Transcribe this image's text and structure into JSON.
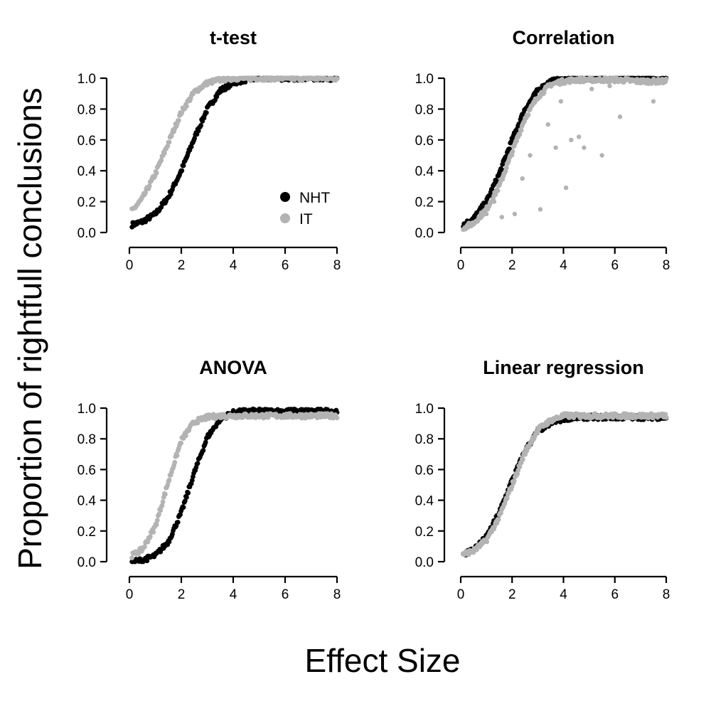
{
  "figure": {
    "xlabel": "Effect Size",
    "ylabel": "Proportion of rightfull conclusions"
  },
  "colors": {
    "NHT": "#000000",
    "IT": "#b3b3b3"
  },
  "chart_data": [
    {
      "type": "scatter",
      "title": "t-test",
      "xlim": [
        0,
        8
      ],
      "ylim": [
        0,
        1
      ],
      "x_ticks": [
        "0",
        "2",
        "4",
        "6",
        "8"
      ],
      "y_ticks": [
        "0.0",
        "0.2",
        "0.4",
        "0.6",
        "0.8",
        "1.0"
      ],
      "legend": {
        "placement": "bottom-right",
        "entries": [
          "NHT",
          "IT"
        ]
      },
      "series": [
        {
          "name": "NHT",
          "x": [
            0.1,
            0.5,
            1.0,
            1.5,
            2.0,
            2.5,
            3.0,
            3.5,
            4.0,
            4.5,
            5.0,
            6.0,
            7.0,
            8.0
          ],
          "y": [
            0.05,
            0.07,
            0.12,
            0.23,
            0.4,
            0.61,
            0.8,
            0.92,
            0.97,
            0.99,
            1.0,
            1.0,
            1.0,
            1.0
          ]
        },
        {
          "name": "IT",
          "x": [
            0.1,
            0.5,
            1.0,
            1.5,
            2.0,
            2.5,
            3.0,
            3.5,
            4.0,
            4.5,
            5.0,
            6.0,
            7.0,
            8.0
          ],
          "y": [
            0.14,
            0.22,
            0.38,
            0.58,
            0.78,
            0.91,
            0.97,
            0.99,
            1.0,
            1.0,
            1.0,
            1.0,
            1.0,
            1.0
          ]
        }
      ]
    },
    {
      "type": "scatter",
      "title": "Correlation",
      "xlim": [
        0,
        8
      ],
      "ylim": [
        0,
        1
      ],
      "x_ticks": [
        "0",
        "2",
        "4",
        "6",
        "8"
      ],
      "y_ticks": [
        "0.0",
        "0.2",
        "0.4",
        "0.6",
        "0.8",
        "1.0"
      ],
      "series": [
        {
          "name": "NHT",
          "x": [
            0.1,
            0.5,
            1.0,
            1.5,
            2.0,
            2.5,
            3.0,
            3.5,
            4.0,
            4.5,
            5.0,
            6.0,
            7.0,
            8.0
          ],
          "y": [
            0.05,
            0.09,
            0.2,
            0.38,
            0.6,
            0.8,
            0.92,
            0.98,
            0.99,
            1.0,
            1.0,
            1.0,
            1.0,
            1.0
          ]
        },
        {
          "name": "IT",
          "x": [
            0.1,
            0.5,
            1.0,
            1.5,
            2.0,
            2.5,
            3.0,
            3.5,
            4.0,
            4.5,
            5.0,
            6.0,
            7.0,
            8.0
          ],
          "y": [
            0.03,
            0.06,
            0.15,
            0.3,
            0.52,
            0.74,
            0.88,
            0.96,
            0.98,
            0.99,
            0.99,
            0.99,
            0.98,
            0.98
          ]
        },
        {
          "name": "IT",
          "x": [
            1.0,
            1.3,
            1.6,
            2.1,
            2.4,
            2.7,
            3.1,
            3.4,
            3.7,
            3.9,
            4.1,
            4.3,
            4.6,
            4.8,
            5.1,
            5.5,
            5.8,
            6.2,
            6.9,
            7.5,
            7.9
          ],
          "y": [
            0.12,
            0.2,
            0.1,
            0.12,
            0.35,
            0.5,
            0.15,
            0.7,
            0.55,
            0.85,
            0.29,
            0.6,
            0.62,
            0.55,
            0.93,
            0.5,
            0.95,
            0.75,
            0.97,
            0.85,
            0.98
          ]
        }
      ]
    },
    {
      "type": "scatter",
      "title": "ANOVA",
      "xlim": [
        0,
        8
      ],
      "ylim": [
        0,
        1
      ],
      "x_ticks": [
        "0",
        "2",
        "4",
        "6",
        "8"
      ],
      "y_ticks": [
        "0.0",
        "0.2",
        "0.4",
        "0.6",
        "0.8",
        "1.0"
      ],
      "series": [
        {
          "name": "NHT",
          "x": [
            0.1,
            0.5,
            1.0,
            1.5,
            2.0,
            2.5,
            3.0,
            3.5,
            4.0,
            4.5,
            5.0,
            6.0,
            7.0,
            8.0
          ],
          "y": [
            0.0,
            0.01,
            0.04,
            0.13,
            0.32,
            0.58,
            0.81,
            0.93,
            0.97,
            0.98,
            0.98,
            0.98,
            0.98,
            0.98
          ]
        },
        {
          "name": "IT",
          "x": [
            0.1,
            0.5,
            1.0,
            1.5,
            2.0,
            2.5,
            3.0,
            3.5,
            4.0,
            4.5,
            5.0,
            6.0,
            7.0,
            8.0
          ],
          "y": [
            0.04,
            0.08,
            0.23,
            0.52,
            0.79,
            0.91,
            0.94,
            0.95,
            0.95,
            0.95,
            0.95,
            0.95,
            0.95,
            0.95
          ]
        }
      ]
    },
    {
      "type": "scatter",
      "title": "Linear regression",
      "xlim": [
        0,
        8
      ],
      "ylim": [
        0,
        1
      ],
      "x_ticks": [
        "0",
        "2",
        "4",
        "6",
        "8"
      ],
      "y_ticks": [
        "0.0",
        "0.2",
        "0.4",
        "0.6",
        "0.8",
        "1.0"
      ],
      "series": [
        {
          "name": "NHT",
          "x": [
            0.1,
            0.5,
            1.0,
            1.5,
            2.0,
            2.5,
            3.0,
            3.5,
            4.0,
            4.5,
            5.0,
            6.0,
            7.0,
            8.0
          ],
          "y": [
            0.05,
            0.08,
            0.16,
            0.32,
            0.53,
            0.72,
            0.85,
            0.9,
            0.93,
            0.94,
            0.94,
            0.94,
            0.94,
            0.94
          ]
        },
        {
          "name": "IT",
          "x": [
            0.1,
            0.5,
            1.0,
            1.5,
            2.0,
            2.5,
            3.0,
            3.5,
            4.0,
            4.5,
            5.0,
            6.0,
            7.0,
            8.0
          ],
          "y": [
            0.05,
            0.07,
            0.14,
            0.29,
            0.5,
            0.71,
            0.86,
            0.92,
            0.95,
            0.95,
            0.95,
            0.95,
            0.95,
            0.95
          ]
        }
      ]
    }
  ]
}
